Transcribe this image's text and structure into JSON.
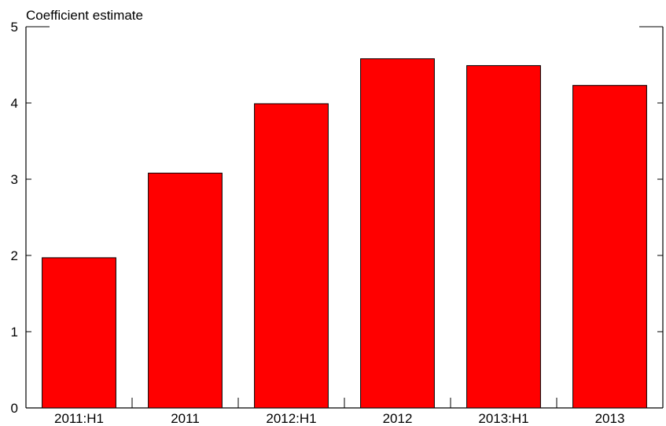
{
  "chart_data": {
    "type": "bar",
    "ylabel": "Coefficient estimate",
    "categories": [
      "2011:H1",
      "2011",
      "2012:H1",
      "2012",
      "2013:H1",
      "2013"
    ],
    "values": [
      1.97,
      3.08,
      3.99,
      4.58,
      4.49,
      4.23
    ],
    "ylim": [
      0,
      5
    ],
    "yticks": [
      0,
      1,
      2,
      3,
      4,
      5
    ],
    "grid": false,
    "bar_color": "#ff0000",
    "axis_color": "#000000"
  }
}
